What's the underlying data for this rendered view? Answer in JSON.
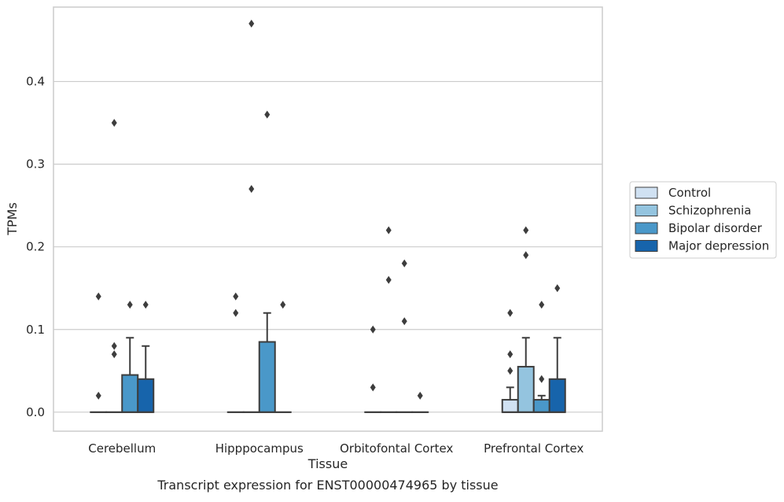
{
  "chart_data": {
    "type": "box",
    "caption": "Transcript expression for ENST00000474965 by tissue",
    "xlabel": "Tissue",
    "ylabel": "TPMs",
    "ylim": [
      -0.023,
      0.49
    ],
    "yticks": [
      0.0,
      0.1,
      0.2,
      0.3,
      0.4
    ],
    "ytick_labels": [
      "0.0",
      "0.1",
      "0.2",
      "0.3",
      "0.4"
    ],
    "grid": "horizontal",
    "legend_position": "right-center",
    "categories": [
      "Cerebellum",
      "Hipppocampus",
      "Orbitofontal Cortex",
      "Prefrontal Cortex"
    ],
    "series": [
      {
        "name": "Control",
        "color": "#d0e1f2",
        "boxes": [
          {
            "q1": 0,
            "median": 0,
            "q3": 0,
            "whisker_low": 0,
            "whisker_high": 0,
            "outliers": [
              0.02,
              0.14
            ]
          },
          {
            "q1": 0,
            "median": 0,
            "q3": 0,
            "whisker_low": 0,
            "whisker_high": 0,
            "outliers": [
              0.12,
              0.14
            ]
          },
          {
            "q1": 0,
            "median": 0,
            "q3": 0,
            "whisker_low": 0,
            "whisker_high": 0,
            "outliers": [
              0.03,
              0.1
            ]
          },
          {
            "q1": 0,
            "median": 0,
            "q3": 0.015,
            "whisker_low": 0,
            "whisker_high": 0.03,
            "outliers": [
              0.05,
              0.07,
              0.12
            ]
          }
        ]
      },
      {
        "name": "Schizophrenia",
        "color": "#94c4df",
        "boxes": [
          {
            "q1": 0,
            "median": 0,
            "q3": 0,
            "whisker_low": 0,
            "whisker_high": 0,
            "outliers": [
              0.07,
              0.08,
              0.35
            ]
          },
          {
            "q1": 0,
            "median": 0,
            "q3": 0,
            "whisker_low": 0,
            "whisker_high": 0,
            "outliers": [
              0.27,
              0.47
            ]
          },
          {
            "q1": 0,
            "median": 0,
            "q3": 0,
            "whisker_low": 0,
            "whisker_high": 0,
            "outliers": [
              0.16,
              0.22
            ]
          },
          {
            "q1": 0,
            "median": 0,
            "q3": 0.055,
            "whisker_low": 0,
            "whisker_high": 0.09,
            "outliers": [
              0.19,
              0.22
            ]
          }
        ]
      },
      {
        "name": "Bipolar disorder",
        "color": "#4a98c9",
        "boxes": [
          {
            "q1": 0,
            "median": 0,
            "q3": 0.045,
            "whisker_low": 0,
            "whisker_high": 0.09,
            "outliers": [
              0.13
            ]
          },
          {
            "q1": 0,
            "median": 0,
            "q3": 0.085,
            "whisker_low": 0,
            "whisker_high": 0.12,
            "outliers": [
              0.36
            ]
          },
          {
            "q1": 0,
            "median": 0,
            "q3": 0,
            "whisker_low": 0,
            "whisker_high": 0,
            "outliers": [
              0.11,
              0.18
            ]
          },
          {
            "q1": 0,
            "median": 0,
            "q3": 0.015,
            "whisker_low": 0,
            "whisker_high": 0.02,
            "outliers": [
              0.04,
              0.13
            ]
          }
        ]
      },
      {
        "name": "Major depression",
        "color": "#1764ab",
        "boxes": [
          {
            "q1": 0,
            "median": 0,
            "q3": 0.04,
            "whisker_low": 0,
            "whisker_high": 0.08,
            "outliers": [
              0.13
            ]
          },
          {
            "q1": 0,
            "median": 0,
            "q3": 0,
            "whisker_low": 0,
            "whisker_high": 0,
            "outliers": [
              0.13
            ]
          },
          {
            "q1": 0,
            "median": 0,
            "q3": 0,
            "whisker_low": 0,
            "whisker_high": 0,
            "outliers": [
              0.02
            ]
          },
          {
            "q1": 0,
            "median": 0,
            "q3": 0.04,
            "whisker_low": 0,
            "whisker_high": 0.09,
            "outliers": [
              0.15
            ]
          }
        ]
      }
    ]
  }
}
